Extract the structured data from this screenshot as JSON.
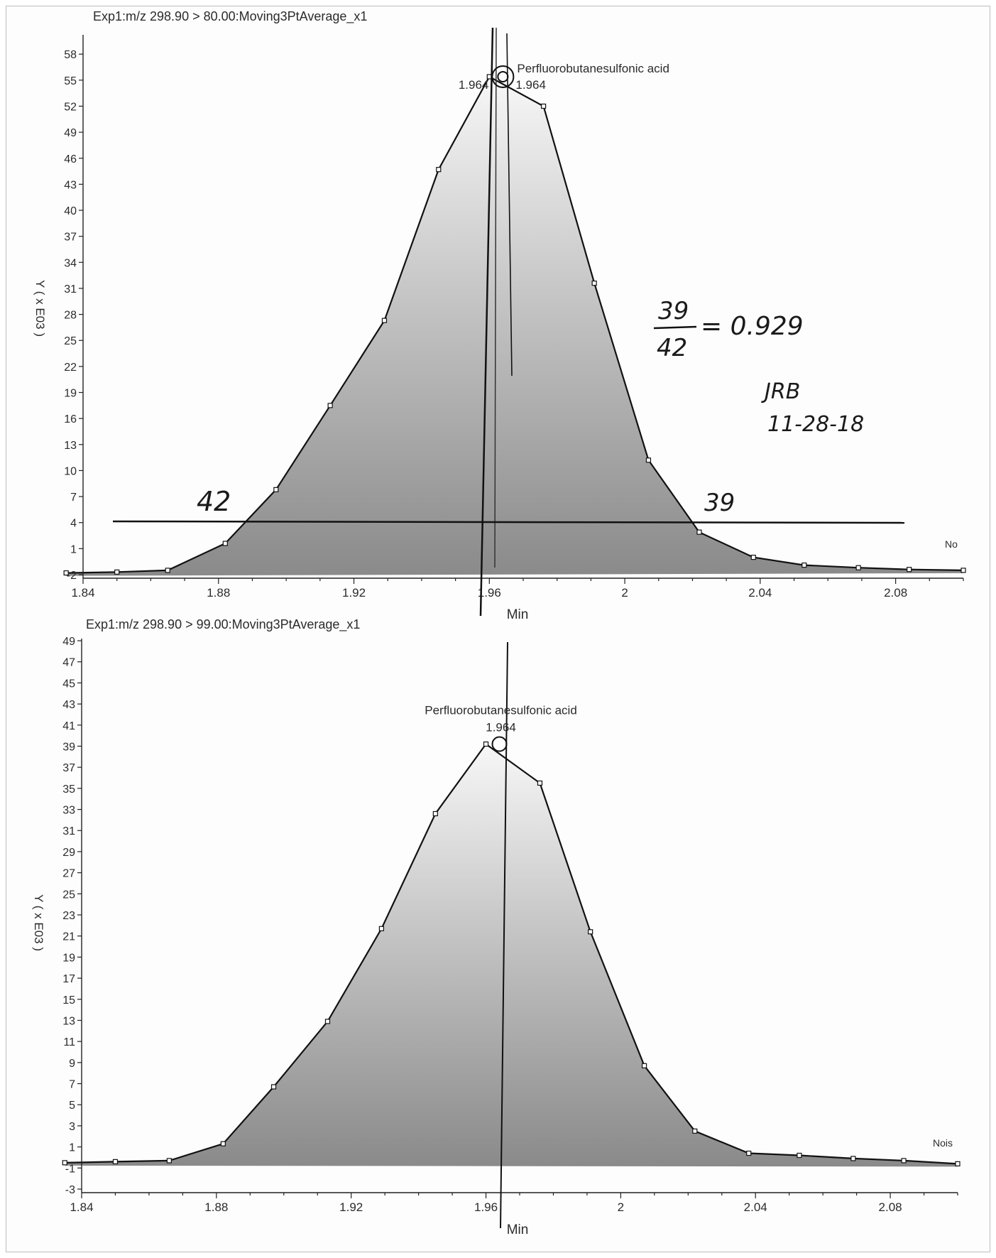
{
  "chart_data": [
    {
      "type": "area",
      "title": "Exp1:m/z 298.90 > 80.00:Moving3PtAverage_x1",
      "xlabel": "Min",
      "ylabel": "Y ( x E03 )",
      "xlim": [
        1.84,
        2.1
      ],
      "ylim": [
        -2,
        59
      ],
      "x_ticks": [
        "1.84",
        "1.88",
        "1.92",
        "1.96",
        "2",
        "2.04",
        "2.08"
      ],
      "y_ticks": [
        "-2",
        "1",
        "4",
        "7",
        "10",
        "13",
        "16",
        "19",
        "22",
        "25",
        "28",
        "31",
        "34",
        "37",
        "40",
        "43",
        "46",
        "49",
        "52",
        "55",
        "58"
      ],
      "grid": false,
      "series": [
        {
          "x": [
            1.835,
            1.85,
            1.865,
            1.882,
            1.897,
            1.913,
            1.929,
            1.945,
            1.96,
            1.976,
            1.991,
            2.007,
            2.022,
            2.038,
            2.053,
            2.069,
            2.084,
            2.1
          ],
          "y": [
            -1.8,
            -1.7,
            -1.5,
            1.6,
            7.8,
            17.5,
            27.3,
            44.7,
            55.4,
            52.0,
            31.6,
            11.2,
            2.9,
            0.0,
            -0.9,
            -1.2,
            -1.4,
            -1.5
          ]
        }
      ],
      "peak": {
        "label": "Perfluorobutanesulfonic acid",
        "rt_left": "1.964",
        "rt_right": "1.964",
        "x": 1.964,
        "y": 55.4
      },
      "side_label": "No"
    },
    {
      "type": "area",
      "title": "Exp1:m/z 298.90 > 99.00:Moving3PtAverage_x1",
      "xlabel": "Min",
      "ylabel": "Y ( x E03 )",
      "xlim": [
        1.84,
        2.1
      ],
      "ylim": [
        -3,
        49
      ],
      "x_ticks": [
        "1.84",
        "1.88",
        "1.92",
        "1.96",
        "2",
        "2.04",
        "2.08"
      ],
      "y_ticks": [
        "-3",
        "-1",
        "1",
        "3",
        "5",
        "7",
        "9",
        "11",
        "13",
        "15",
        "17",
        "19",
        "21",
        "23",
        "25",
        "27",
        "29",
        "31",
        "33",
        "35",
        "37",
        "39",
        "41",
        "43",
        "45",
        "47",
        "49"
      ],
      "grid": false,
      "series": [
        {
          "x": [
            1.835,
            1.85,
            1.866,
            1.882,
            1.897,
            1.913,
            1.929,
            1.945,
            1.96,
            1.976,
            1.991,
            2.007,
            2.022,
            2.038,
            2.053,
            2.069,
            2.084,
            2.1
          ],
          "y": [
            -0.5,
            -0.4,
            -0.3,
            1.3,
            6.7,
            12.9,
            21.7,
            32.6,
            39.2,
            35.5,
            21.4,
            8.7,
            2.5,
            0.4,
            0.2,
            -0.1,
            -0.3,
            -0.6
          ]
        }
      ],
      "peak": {
        "label": "Perfluorobutanesulfonic acid",
        "rt": "1.964",
        "x": 1.964,
        "y": 39.2
      },
      "side_label": "Nois"
    }
  ],
  "annotations": {
    "ratio_numerator": "39",
    "ratio_denominator": "42",
    "ratio_result": "= 0.929",
    "initials": "JRB",
    "date": "11-28-18",
    "left_width": "42",
    "right_width": "39"
  }
}
